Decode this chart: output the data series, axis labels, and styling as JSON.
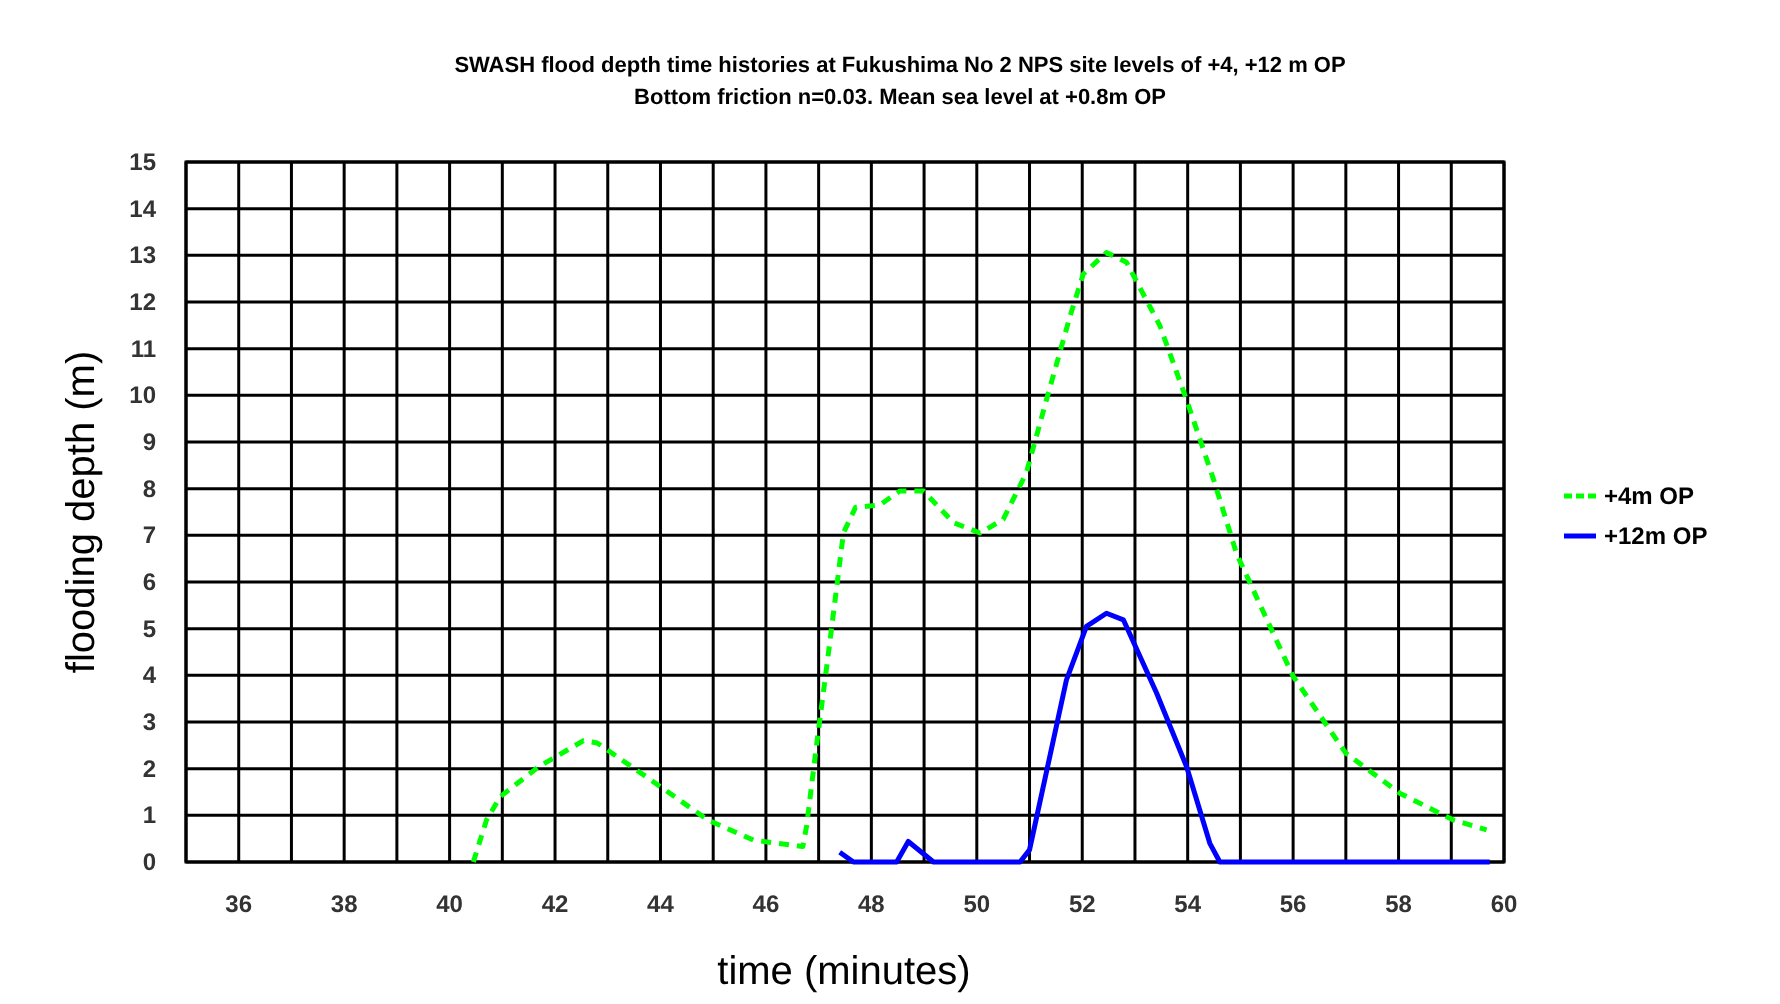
{
  "chart_data": {
    "type": "line",
    "title": "SWASH flood depth time histories at Fukushima No 2 NPS site levels of +4,  +12 m OP",
    "subtitle": "Bottom friction n=0.03. Mean sea level at +0.8m OP",
    "xlabel": "time (minutes)",
    "ylabel": "flooding depth (m)",
    "xlim": [
      35,
      60
    ],
    "xticks": [
      {
        "value": 35,
        "label": null
      },
      36,
      {
        "value": 37,
        "label": null
      },
      38,
      {
        "value": 39,
        "label": null
      },
      40,
      {
        "value": 41,
        "label": null
      },
      42,
      {
        "value": 43,
        "label": null
      },
      44,
      {
        "value": 45,
        "label": null
      },
      46,
      {
        "value": 47,
        "label": null
      },
      48,
      {
        "value": 49,
        "label": null
      },
      50,
      {
        "value": 51,
        "label": null
      },
      52,
      {
        "value": 53,
        "label": null
      },
      54,
      {
        "value": 55,
        "label": null
      },
      56,
      {
        "value": 57,
        "label": null
      },
      58,
      {
        "value": 59,
        "label": null
      },
      60
    ],
    "ylim": [
      0,
      15
    ],
    "yticks": [
      0,
      1,
      2,
      3,
      4,
      5,
      6,
      7,
      8,
      9,
      10,
      11,
      12,
      13,
      14,
      15
    ],
    "grid": true,
    "legend": "right",
    "series": [
      {
        "name": "+4m OP",
        "color": "#00ff00",
        "line_style": "dashed",
        "x": [
          40.45,
          40.7,
          40.96,
          41.7,
          42.54,
          42.8,
          43.7,
          44.9,
          45.76,
          46.7,
          46.77,
          46.96,
          47.2,
          47.47,
          47.7,
          48.16,
          48.54,
          48.99,
          49.56,
          50.06,
          50.5,
          50.94,
          51.32,
          51.77,
          52.02,
          52.46,
          52.84,
          53.47,
          53.98,
          54.49,
          54.93,
          55.5,
          56.0,
          57.0,
          58.03,
          59.04,
          59.67
        ],
        "values": [
          0,
          0.9,
          1.4,
          2.05,
          2.6,
          2.55,
          1.85,
          0.9,
          0.47,
          0.33,
          0.76,
          2.5,
          4.6,
          7.05,
          7.6,
          7.65,
          7.95,
          7.95,
          7.27,
          7.05,
          7.34,
          8.34,
          9.9,
          11.7,
          12.6,
          13.06,
          12.85,
          11.5,
          9.9,
          8.2,
          6.6,
          5.2,
          3.98,
          2.33,
          1.47,
          0.9,
          0.69
        ]
      },
      {
        "name": "+12m OP",
        "color": "#0000ff",
        "line_style": "solid",
        "x": [
          47.4,
          47.66,
          48.48,
          48.7,
          49.18,
          50.82,
          51.0,
          51.7,
          52.08,
          52.46,
          52.78,
          53.41,
          53.98,
          54.42,
          54.61,
          59.73
        ],
        "values": [
          0.21,
          0,
          0,
          0.44,
          0,
          0,
          0.26,
          3.9,
          5.05,
          5.33,
          5.19,
          3.62,
          2.04,
          0.4,
          0,
          0
        ]
      }
    ]
  }
}
